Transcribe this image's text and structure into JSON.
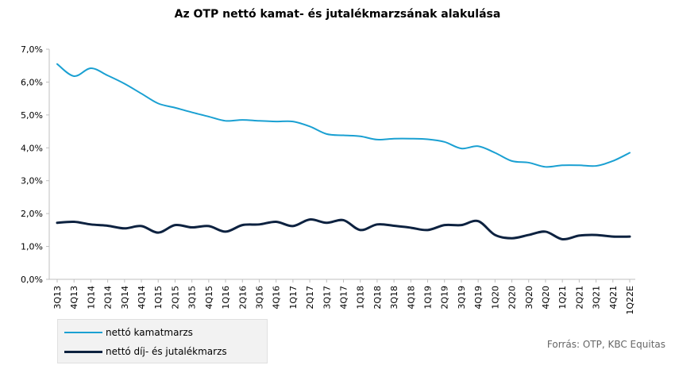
{
  "chart_data": {
    "type": "line",
    "title": "Az OTP nettó kamat- és jutalékmarzsának alakulása",
    "xlabel": "",
    "ylabel": "",
    "ylim": [
      0,
      7
    ],
    "yticks": [
      "0,0%",
      "1,0%",
      "2,0%",
      "3,0%",
      "4,0%",
      "5,0%",
      "6,0%",
      "7,0%"
    ],
    "grid": false,
    "legend_position": "bottom-left",
    "categories": [
      "3Q13",
      "4Q13",
      "1Q14",
      "2Q14",
      "3Q14",
      "4Q14",
      "1Q15",
      "2Q15",
      "3Q15",
      "4Q15",
      "1Q16",
      "2Q16",
      "3Q16",
      "4Q16",
      "1Q17",
      "2Q17",
      "3Q17",
      "4Q17",
      "1Q18",
      "2Q18",
      "3Q18",
      "4Q18",
      "1Q19",
      "2Q19",
      "3Q19",
      "4Q19",
      "1Q20",
      "2Q20",
      "3Q20",
      "4Q20",
      "1Q21",
      "2Q21",
      "3Q21",
      "4Q21",
      "1Q22E"
    ],
    "x_tick_labels": [
      "3Q13",
      "4Q13",
      "1Q14",
      "2Q14",
      "3Q14",
      "4Q14",
      "1Q15",
      "2Q15",
      "3Q15",
      "4Q15",
      "1Q16",
      "2Q16",
      "3Q16",
      "4Q16",
      "1Q17",
      "2Q17",
      "3Q17",
      "4Q17",
      "1Q18",
      "2Q18",
      "3Q18",
      "4Q18",
      "1Q19",
      "2Q19",
      "3Q19",
      "4Q19",
      "1Q20",
      "2Q20",
      "3Q20",
      "4Q20",
      "1Q21",
      "2Q21",
      "3Q21",
      "4Q21",
      "1Q22E"
    ],
    "series": [
      {
        "name": "nettó kamatmarzs",
        "color": "#1aa0d2",
        "values": [
          6.55,
          6.18,
          6.42,
          6.2,
          5.95,
          5.65,
          5.35,
          5.22,
          5.08,
          4.95,
          4.82,
          4.85,
          4.82,
          4.8,
          4.8,
          4.65,
          4.42,
          4.38,
          4.35,
          4.25,
          4.28,
          4.28,
          4.26,
          4.18,
          3.98,
          4.05,
          3.85,
          3.6,
          3.55,
          3.42,
          3.47,
          3.47,
          3.45,
          3.6,
          3.85
        ]
      },
      {
        "name": "nettó díj- és jutalékmarzs",
        "color": "#0d2240",
        "values": [
          1.72,
          1.75,
          1.67,
          1.63,
          1.55,
          1.62,
          1.42,
          1.65,
          1.58,
          1.62,
          1.45,
          1.65,
          1.67,
          1.75,
          1.62,
          1.82,
          1.72,
          1.8,
          1.5,
          1.67,
          1.63,
          1.57,
          1.5,
          1.65,
          1.65,
          1.77,
          1.35,
          1.25,
          1.35,
          1.45,
          1.22,
          1.33,
          1.35,
          1.3,
          1.3
        ]
      }
    ]
  },
  "source": "Forrás: OTP, KBC Equitas"
}
